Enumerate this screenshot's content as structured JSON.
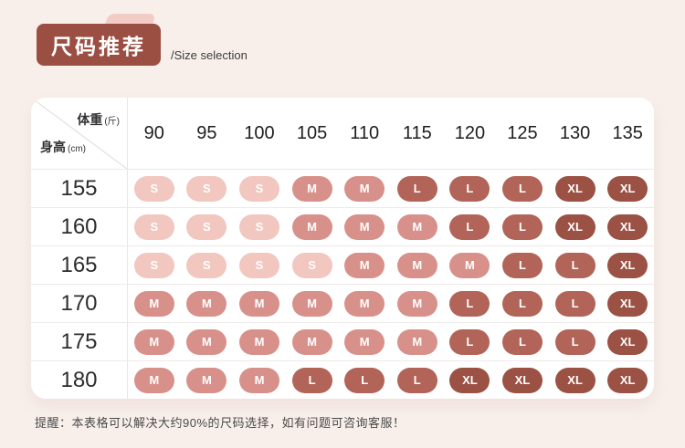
{
  "header": {
    "title": "尺码推荐",
    "subtitle": "/Size selection"
  },
  "table_corner": {
    "top_label": "体重",
    "top_unit": "(斤)",
    "bottom_label": "身高",
    "bottom_unit": "(cm)"
  },
  "footer": {
    "note": "提醒：本表格可以解决大约90%的尺码选择，如有问题可咨询客服！"
  },
  "colors": {
    "page_background": "#f8efeb",
    "badge": "#9b4f43",
    "badge_tab": "#f3cdc5",
    "size_pills": {
      "S": "#f1c7bf",
      "M": "#d8918a",
      "L": "#b16457",
      "XL": "#9b5143"
    }
  },
  "chart_data": {
    "type": "table",
    "title": "尺码推荐 /Size selection",
    "column_header": "体重 (斤)",
    "row_header": "身高 (cm)",
    "columns": [
      "90",
      "95",
      "100",
      "105",
      "110",
      "115",
      "120",
      "125",
      "130",
      "135"
    ],
    "row_labels": [
      "155",
      "160",
      "165",
      "170",
      "175",
      "180"
    ],
    "cells": [
      [
        "S",
        "S",
        "S",
        "M",
        "M",
        "L",
        "L",
        "L",
        "XL",
        "XL"
      ],
      [
        "S",
        "S",
        "S",
        "M",
        "M",
        "M",
        "L",
        "L",
        "XL",
        "XL"
      ],
      [
        "S",
        "S",
        "S",
        "S",
        "M",
        "M",
        "M",
        "L",
        "L",
        "XL"
      ],
      [
        "M",
        "M",
        "M",
        "M",
        "M",
        "M",
        "L",
        "L",
        "L",
        "XL"
      ],
      [
        "M",
        "M",
        "M",
        "M",
        "M",
        "M",
        "L",
        "L",
        "L",
        "XL"
      ],
      [
        "M",
        "M",
        "M",
        "L",
        "L",
        "L",
        "XL",
        "XL",
        "XL",
        "XL"
      ]
    ],
    "legend": {
      "S": "pale-pink",
      "M": "rose",
      "L": "mauve-brown",
      "XL": "dark-red-brown"
    }
  }
}
